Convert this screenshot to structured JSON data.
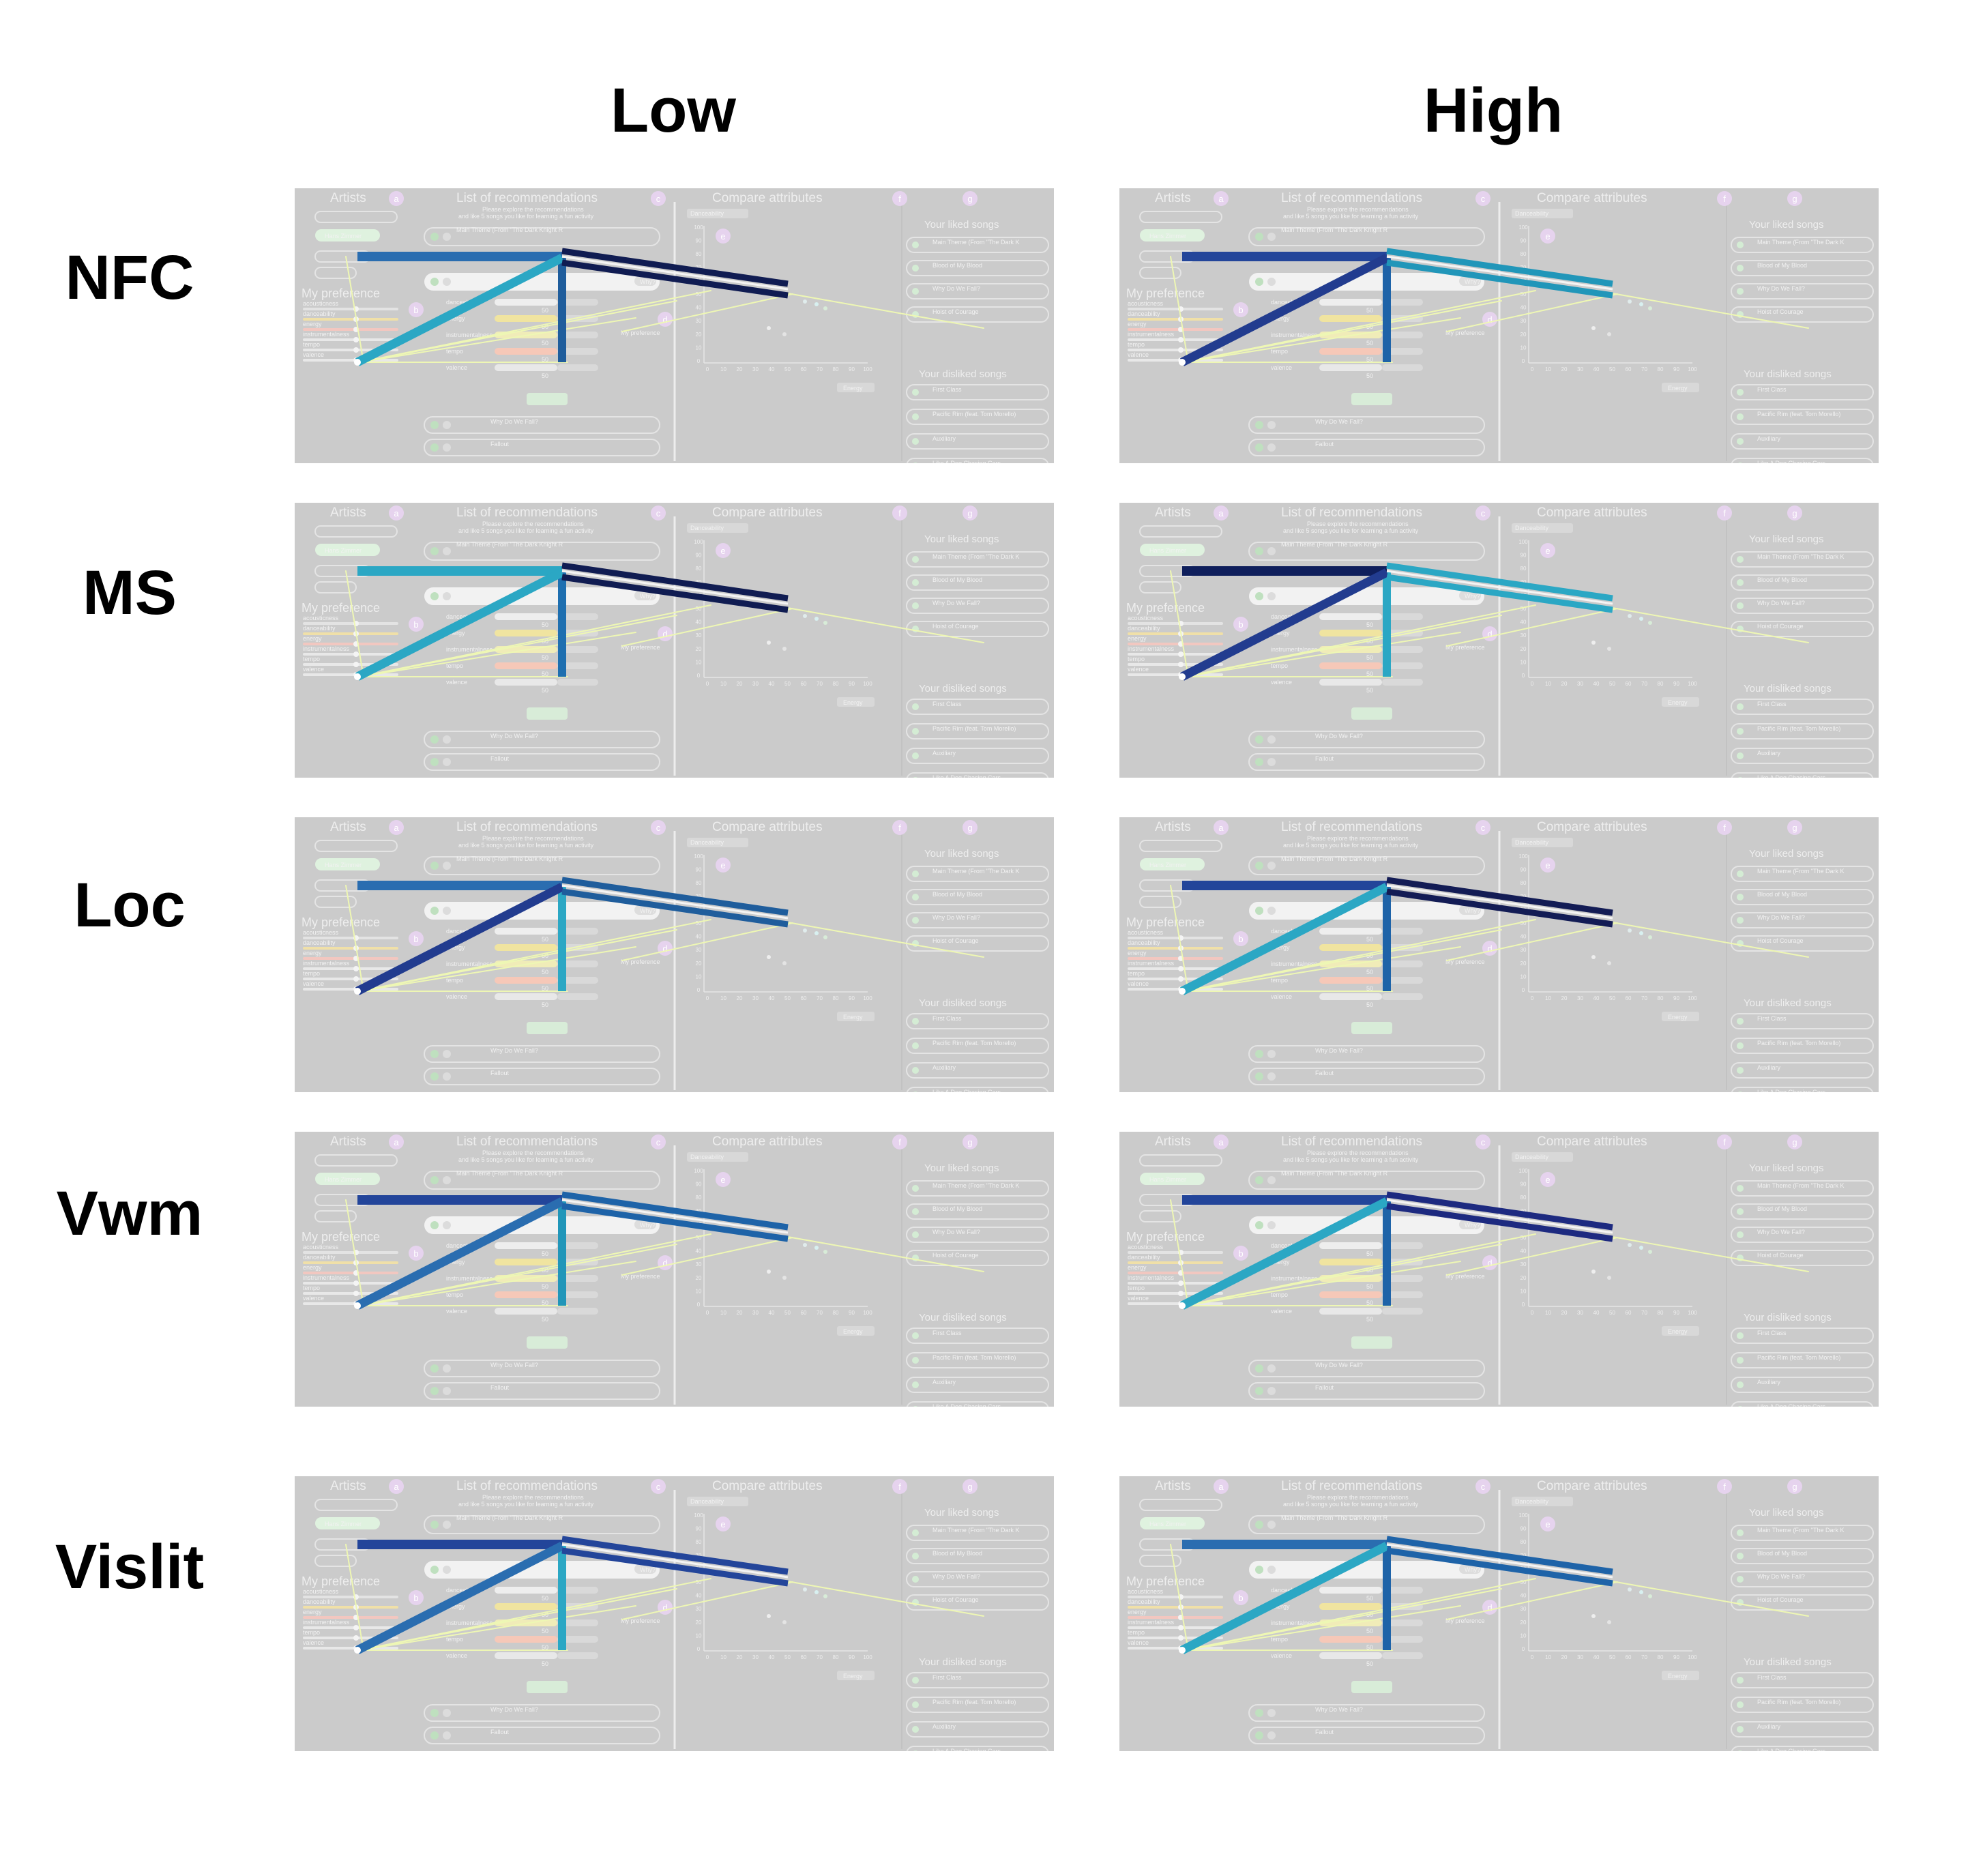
{
  "columns": [
    "Low",
    "High"
  ],
  "rows": [
    {
      "label": "NFC",
      "panels": [
        {
          "colors": {
            "h": "#2a6db0",
            "v": "#1f5d9c",
            "up": "#2ba7c4",
            "d1": "#101c52",
            "d2": "#101c52"
          }
        },
        {
          "colors": {
            "h": "#23459a",
            "v": "#1e63a8",
            "up": "#223c8f",
            "d1": "#2196b9",
            "d2": "#2196b9"
          }
        }
      ]
    },
    {
      "label": "MS",
      "panels": [
        {
          "colors": {
            "h": "#2ba7c4",
            "v": "#1e6fb0",
            "up": "#2ba7c4",
            "d1": "#101c52",
            "d2": "#101c52"
          }
        },
        {
          "colors": {
            "h": "#0f1f5c",
            "v": "#2ba7c4",
            "up": "#223c8f",
            "d1": "#2ba7c4",
            "d2": "#2ba7c4"
          }
        }
      ]
    },
    {
      "label": "Loc",
      "panels": [
        {
          "colors": {
            "h": "#2a6db0",
            "v": "#2ba7c4",
            "up": "#223c8f",
            "d1": "#1f5d9c",
            "d2": "#1f5d9c"
          }
        },
        {
          "colors": {
            "h": "#23459a",
            "v": "#1e63a8",
            "up": "#2ba7c4",
            "d1": "#131c55",
            "d2": "#131c55"
          }
        }
      ]
    },
    {
      "label": "Vwm",
      "panels": [
        {
          "colors": {
            "h": "#23459a",
            "v": "#2196b9",
            "up": "#2a6db0",
            "d1": "#1e63a8",
            "d2": "#1e63a8"
          }
        },
        {
          "colors": {
            "h": "#23459a",
            "v": "#1e63a8",
            "up": "#2ba7c4",
            "d1": "#1d2a80",
            "d2": "#1d2a80"
          }
        }
      ]
    },
    {
      "label": "Vislit",
      "panels": [
        {
          "colors": {
            "h": "#23459a",
            "v": "#2ba7c4",
            "up": "#2a6db0",
            "d1": "#23459a",
            "d2": "#23459a"
          }
        },
        {
          "colors": {
            "h": "#2a6db0",
            "v": "#1e63a8",
            "up": "#2ba7c4",
            "d1": "#1e63a8",
            "d2": "#1e63a8"
          }
        }
      ]
    }
  ],
  "screenshot_ui": {
    "sections": {
      "artists": "Artists",
      "recommendations": "List of recommendations",
      "compare": "Compare attributes",
      "my_preference": "My preference",
      "liked": "Your liked songs",
      "disliked": "Your disliked songs"
    },
    "badges": [
      "a",
      "b",
      "c",
      "d",
      "e",
      "f",
      "g"
    ],
    "artist_chip": "Hans Zimmer",
    "intro_line_1": "Please explore the recommendations",
    "intro_line_2": "and like 5 songs you like for learning a fun activity",
    "recommendation_items": [
      "Main Theme (From \"The Dark Knight R",
      "Why Do We Fall?",
      "Fallout"
    ],
    "preference_sliders": [
      "acousticness",
      "danceability",
      "energy",
      "instrumentalness",
      "tempo",
      "valence"
    ],
    "attribute_labels": [
      "danceability",
      "energy",
      "instrumentalness",
      "tempo",
      "valence"
    ],
    "slider_value": "50",
    "why_button": "Why?",
    "my_preference_legend": "My preference",
    "dropdown_y": "Danceability",
    "dropdown_x": "Energy",
    "y_ticks": [
      "100",
      "90",
      "80",
      "70",
      "60",
      "50",
      "40",
      "30",
      "20",
      "10",
      "0"
    ],
    "x_ticks": [
      "0",
      "10",
      "20",
      "30",
      "40",
      "50",
      "60",
      "70",
      "80",
      "90",
      "100"
    ],
    "liked_songs": [
      "Main Theme (From \"The Dark K",
      "Blood of My Blood",
      "Why Do We Fall?",
      "Hoist of Courage"
    ],
    "disliked_songs": [
      "First Class",
      "Pacific Rim (feat. Tom Morello)",
      "Auxiliary",
      "Like A Dog Chasing Cars"
    ]
  }
}
